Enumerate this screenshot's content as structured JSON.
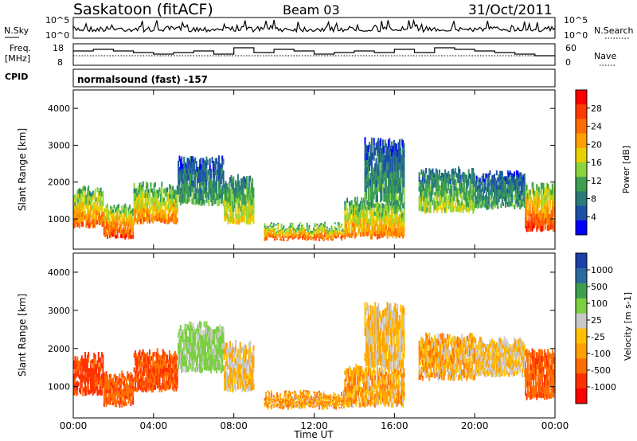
{
  "header": {
    "station": "Saskatoon (fitACF)",
    "beam": "Beam 03",
    "date": "31/Oct/2011"
  },
  "noise_panel": {
    "left_label": "N.Sky",
    "right_label": "N.Search",
    "tick_top": "10^5",
    "tick_bottom": "10^0"
  },
  "freq_panel": {
    "left_label_line1": "Freq.",
    "left_label_line2": "[MHz]",
    "right_label": "Nave",
    "left_ticks": [
      "18",
      "8"
    ],
    "right_ticks": [
      "60",
      "0"
    ]
  },
  "cpid": {
    "label": "CPID",
    "program": "normalsound (fast) -157"
  },
  "chart_data": [
    {
      "type": "heatmap",
      "title": "Power",
      "ylabel": "Slant Range [km]",
      "xlabel": "Time UT",
      "ylim": [
        180,
        4500
      ],
      "yticks": [
        "1000",
        "2000",
        "3000",
        "4000"
      ],
      "xticks": [
        "00:00",
        "04:00",
        "08:00",
        "12:00",
        "16:00",
        "20:00",
        "00:00"
      ],
      "colorbar_label": "Power [dB]",
      "colorbar_ticks": [
        "28",
        "24",
        "20",
        "16",
        "12",
        "8",
        "4"
      ],
      "colorbar_colors": [
        "#ff0000",
        "#ff3a00",
        "#ff6e00",
        "#ffa000",
        "#e8d000",
        "#8cd43c",
        "#3ca050",
        "#2a7a7a",
        "#1b4fa8",
        "#0000ff"
      ],
      "bands": [
        {
          "t_start": 0.0,
          "t_end": 1.5,
          "range_low": 800,
          "range_high": 1800,
          "value": 24
        },
        {
          "t_start": 1.5,
          "t_end": 3.0,
          "range_low": 500,
          "range_high": 1300,
          "value": 26
        },
        {
          "t_start": 3.0,
          "t_end": 5.2,
          "range_low": 900,
          "range_high": 1900,
          "value": 22
        },
        {
          "t_start": 5.2,
          "t_end": 7.5,
          "range_low": 1400,
          "range_high": 2600,
          "value": 12
        },
        {
          "t_start": 7.5,
          "t_end": 9.0,
          "range_low": 900,
          "range_high": 2100,
          "value": 18
        },
        {
          "t_start": 9.5,
          "t_end": 13.5,
          "range_low": 450,
          "range_high": 800,
          "value": 24
        },
        {
          "t_start": 13.5,
          "t_end": 16.5,
          "range_low": 500,
          "range_high": 1500,
          "value": 22
        },
        {
          "t_start": 14.5,
          "t_end": 16.5,
          "range_low": 1500,
          "range_high": 3100,
          "value": 12
        },
        {
          "t_start": 17.2,
          "t_end": 20.0,
          "range_low": 1200,
          "range_high": 2300,
          "value": 16
        },
        {
          "t_start": 20.0,
          "t_end": 22.5,
          "range_low": 1300,
          "range_high": 2200,
          "value": 12
        },
        {
          "t_start": 22.5,
          "t_end": 24.0,
          "range_low": 700,
          "range_high": 1900,
          "value": 26
        }
      ]
    },
    {
      "type": "heatmap",
      "title": "Velocity",
      "ylabel": "Slant Range [km]",
      "xlabel": "Time UT",
      "ylim": [
        180,
        4500
      ],
      "yticks": [
        "1000",
        "2000",
        "3000",
        "4000"
      ],
      "xticks": [
        "00:00",
        "04:00",
        "08:00",
        "12:00",
        "16:00",
        "20:00",
        "00:00"
      ],
      "colorbar_label": "Velocity [m s-1]",
      "colorbar_ticks": [
        "1000",
        "500",
        "100",
        "25",
        "-25",
        "-100",
        "-500",
        "-1000"
      ],
      "colorbar_colors": [
        "#1b3fa8",
        "#2a6a9c",
        "#3ca050",
        "#7ad040",
        "#c8c8c8",
        "#ffc000",
        "#ffa000",
        "#ff6e00",
        "#ff3000",
        "#ff0000"
      ],
      "bands": [
        {
          "t_start": 0.0,
          "t_end": 1.5,
          "range_low": 800,
          "range_high": 1800,
          "value": -300
        },
        {
          "t_start": 1.5,
          "t_end": 3.0,
          "range_low": 500,
          "range_high": 1300,
          "value": -200
        },
        {
          "t_start": 3.0,
          "t_end": 5.2,
          "range_low": 900,
          "range_high": 1900,
          "value": -250
        },
        {
          "t_start": 5.2,
          "t_end": 7.5,
          "range_low": 1400,
          "range_high": 2600,
          "value": 150
        },
        {
          "t_start": 7.5,
          "t_end": 9.0,
          "range_low": 900,
          "range_high": 2100,
          "value": 0
        },
        {
          "t_start": 9.5,
          "t_end": 13.5,
          "range_low": 450,
          "range_high": 800,
          "value": -60
        },
        {
          "t_start": 13.5,
          "t_end": 16.5,
          "range_low": 500,
          "range_high": 1500,
          "value": -50
        },
        {
          "t_start": 14.5,
          "t_end": 16.5,
          "range_low": 1500,
          "range_high": 3100,
          "value": 0
        },
        {
          "t_start": 17.2,
          "t_end": 20.0,
          "range_low": 1200,
          "range_high": 2300,
          "value": -40
        },
        {
          "t_start": 20.0,
          "t_end": 22.5,
          "range_low": 1300,
          "range_high": 2200,
          "value": 0
        },
        {
          "t_start": 22.5,
          "t_end": 24.0,
          "range_low": 700,
          "range_high": 1900,
          "value": -200
        }
      ]
    }
  ],
  "xlabel": "Time UT"
}
